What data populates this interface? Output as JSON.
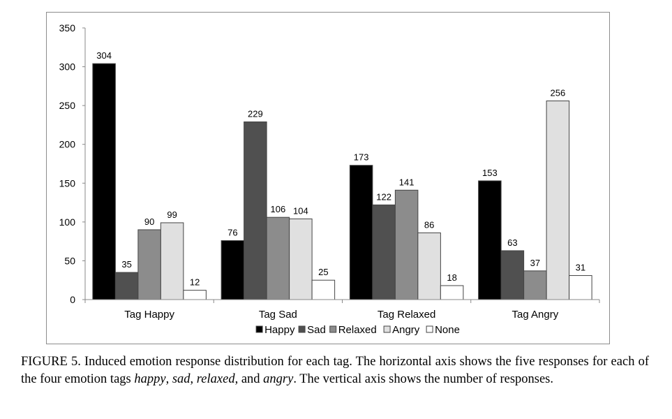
{
  "chart_data": {
    "type": "bar",
    "categories": [
      "Tag Happy",
      "Tag Sad",
      "Tag Relaxed",
      "Tag Angry"
    ],
    "series": [
      {
        "name": "Happy",
        "values": [
          304,
          76,
          173,
          153
        ],
        "color": "#000000"
      },
      {
        "name": "Sad",
        "values": [
          35,
          229,
          122,
          63
        ],
        "color": "#505050"
      },
      {
        "name": "Relaxed",
        "values": [
          90,
          106,
          141,
          37
        ],
        "color": "#8c8c8c"
      },
      {
        "name": "Angry",
        "values": [
          99,
          104,
          86,
          256
        ],
        "color": "#e0e0e0"
      },
      {
        "name": "None",
        "values": [
          12,
          25,
          18,
          31
        ],
        "color": "#ffffff"
      }
    ],
    "ylim": [
      0,
      350
    ],
    "yticks": [
      "0",
      "50",
      "100",
      "150",
      "200",
      "250",
      "300",
      "350"
    ],
    "legend_position": "bottom",
    "grid": false,
    "data_labels": true
  },
  "caption": {
    "line1_prefix": "FIGURE 5. Induced emotion response distribution for each tag. The horizontal axis shows the five",
    "line2_prefix": "responses for each of the four emotion tags ",
    "happy": "happy",
    "comma1": ", ",
    "sad": "sad",
    "comma2": ", ",
    "relaxed": "relaxed",
    "and": ", and ",
    "angry": "angry",
    "line2_suffix": ". The vertical axis shows the",
    "line3": "number of responses."
  }
}
